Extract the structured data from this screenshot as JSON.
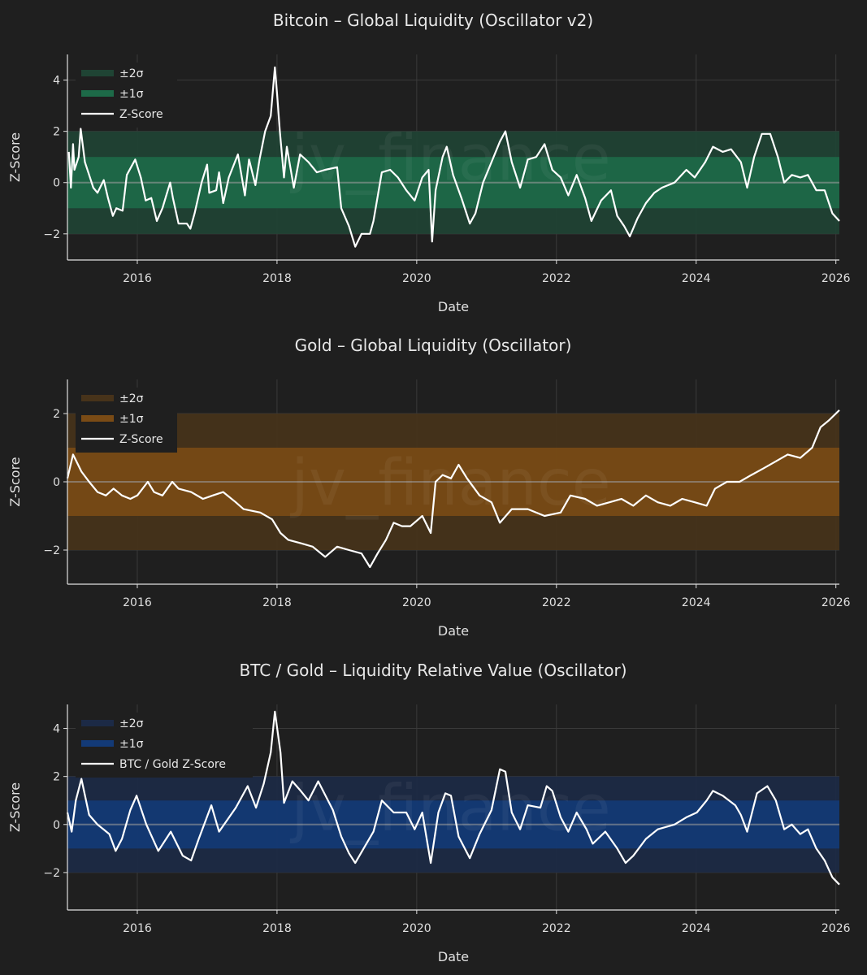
{
  "watermark": "jv_finance",
  "chart_data": [
    {
      "type": "line",
      "title": "Bitcoin – Global Liquidity (Oscillator v2)",
      "xlabel": "Date",
      "ylabel": "Z-Score",
      "xlim": [
        2015.0,
        2026.05
      ],
      "ylim": [
        -3.02,
        5.0
      ],
      "xticks": [
        2016,
        2018,
        2020,
        2022,
        2024,
        2026
      ],
      "yticks": [
        -2,
        0,
        2,
        4
      ],
      "ytick_labels": [
        "−2",
        "0",
        "2",
        "4"
      ],
      "grid": true,
      "legend_position": "top-left",
      "legend": [
        "±2σ",
        "±1σ",
        "Z-Score"
      ],
      "colors": {
        "band2": "#1f4434",
        "band1": "#1d6a48",
        "line": "#ffffff"
      },
      "series": [
        {
          "name": "Z-Score",
          "x": [
            2015.02,
            2015.05,
            2015.08,
            2015.1,
            2015.16,
            2015.19,
            2015.25,
            2015.31,
            2015.37,
            2015.43,
            2015.52,
            2015.58,
            2015.65,
            2015.7,
            2015.79,
            2015.85,
            2015.97,
            2016.05,
            2016.12,
            2016.2,
            2016.28,
            2016.36,
            2016.47,
            2016.51,
            2016.59,
            2016.71,
            2016.76,
            2016.82,
            2016.92,
            2017.0,
            2017.03,
            2017.13,
            2017.17,
            2017.23,
            2017.31,
            2017.44,
            2017.54,
            2017.6,
            2017.69,
            2017.75,
            2017.83,
            2017.91,
            2017.97,
            2018.0,
            2018.04,
            2018.1,
            2018.14,
            2018.24,
            2018.33,
            2018.45,
            2018.57,
            2018.69,
            2018.86,
            2018.92,
            2019.03,
            2019.12,
            2019.21,
            2019.33,
            2019.38,
            2019.5,
            2019.62,
            2019.73,
            2019.85,
            2019.97,
            2020.08,
            2020.17,
            2020.22,
            2020.27,
            2020.37,
            2020.43,
            2020.52,
            2020.64,
            2020.76,
            2020.84,
            2020.95,
            2021.07,
            2021.19,
            2021.27,
            2021.36,
            2021.48,
            2021.59,
            2021.71,
            2021.83,
            2021.94,
            2022.06,
            2022.17,
            2022.29,
            2022.41,
            2022.5,
            2022.64,
            2022.78,
            2022.87,
            2022.97,
            2023.05,
            2023.16,
            2023.28,
            2023.4,
            2023.51,
            2023.69,
            2023.86,
            2023.98,
            2024.13,
            2024.24,
            2024.38,
            2024.5,
            2024.64,
            2024.73,
            2024.83,
            2024.94,
            2025.06,
            2025.17,
            2025.26,
            2025.37,
            2025.49,
            2025.6,
            2025.72,
            2025.84,
            2025.95,
            2026.05
          ],
          "y": [
            1.2,
            -0.2,
            1.5,
            0.5,
            1.0,
            2.1,
            0.8,
            0.3,
            -0.2,
            -0.4,
            0.1,
            -0.6,
            -1.3,
            -1.0,
            -1.1,
            0.3,
            0.9,
            0.2,
            -0.7,
            -0.6,
            -1.5,
            -1.0,
            0.0,
            -0.6,
            -1.6,
            -1.6,
            -1.8,
            -1.2,
            0.0,
            0.7,
            -0.4,
            -0.3,
            0.4,
            -0.8,
            0.2,
            1.1,
            -0.5,
            0.9,
            -0.1,
            0.9,
            2.0,
            2.6,
            4.5,
            3.5,
            2.0,
            0.2,
            1.4,
            -0.2,
            1.1,
            0.8,
            0.4,
            0.5,
            0.6,
            -1.0,
            -1.7,
            -2.5,
            -2.0,
            -2.0,
            -1.5,
            0.4,
            0.5,
            0.2,
            -0.3,
            -0.7,
            0.2,
            0.5,
            -2.3,
            -0.3,
            1.0,
            1.4,
            0.3,
            -0.6,
            -1.6,
            -1.2,
            0.0,
            0.8,
            1.6,
            2.0,
            0.8,
            -0.2,
            0.9,
            1.0,
            1.5,
            0.5,
            0.2,
            -0.5,
            0.3,
            -0.6,
            -1.5,
            -0.7,
            -0.3,
            -1.3,
            -1.7,
            -2.1,
            -1.4,
            -0.8,
            -0.4,
            -0.2,
            0.0,
            0.5,
            0.2,
            0.8,
            1.4,
            1.2,
            1.3,
            0.8,
            -0.2,
            1.0,
            1.9,
            1.9,
            1.0,
            0.0,
            0.3,
            0.2,
            0.3,
            -0.3,
            -0.3,
            -1.2,
            -1.5
          ]
        }
      ]
    },
    {
      "type": "line",
      "title": "Gold – Global Liquidity (Oscillator)",
      "xlabel": "Date",
      "ylabel": "Z-Score",
      "xlim": [
        2015.0,
        2026.05
      ],
      "ylim": [
        -3.0,
        3.0
      ],
      "xticks": [
        2016,
        2018,
        2020,
        2022,
        2024,
        2026
      ],
      "yticks": [
        -2,
        0,
        2
      ],
      "ytick_labels": [
        "−2",
        "0",
        "2"
      ],
      "grid": true,
      "legend_position": "top-left",
      "legend": [
        "±2σ",
        "±1σ",
        "Z-Score"
      ],
      "colors": {
        "band2": "#47331a",
        "band1": "#7a4b15",
        "line": "#ffffff"
      },
      "series": [
        {
          "name": "Z-Score",
          "x": [
            2015.0,
            2015.08,
            2015.2,
            2015.31,
            2015.43,
            2015.55,
            2015.66,
            2015.78,
            2015.9,
            2016.0,
            2016.15,
            2016.24,
            2016.36,
            2016.5,
            2016.59,
            2016.77,
            2016.94,
            2017.08,
            2017.23,
            2017.41,
            2017.52,
            2017.76,
            2017.93,
            2018.05,
            2018.16,
            2018.34,
            2018.51,
            2018.69,
            2018.86,
            2019.03,
            2019.21,
            2019.33,
            2019.44,
            2019.56,
            2019.67,
            2019.79,
            2019.91,
            2020.08,
            2020.2,
            2020.27,
            2020.37,
            2020.49,
            2020.6,
            2020.72,
            2020.9,
            2021.07,
            2021.19,
            2021.36,
            2021.59,
            2021.83,
            2022.06,
            2022.2,
            2022.41,
            2022.58,
            2022.76,
            2022.93,
            2023.1,
            2023.28,
            2023.45,
            2023.63,
            2023.8,
            2023.98,
            2024.15,
            2024.27,
            2024.44,
            2024.62,
            2024.79,
            2024.97,
            2025.14,
            2025.31,
            2025.49,
            2025.66,
            2025.78,
            2025.9,
            2026.05
          ],
          "y": [
            0.1,
            0.8,
            0.3,
            0.0,
            -0.3,
            -0.4,
            -0.2,
            -0.4,
            -0.5,
            -0.4,
            0.0,
            -0.3,
            -0.4,
            0.0,
            -0.2,
            -0.3,
            -0.5,
            -0.4,
            -0.3,
            -0.6,
            -0.8,
            -0.9,
            -1.1,
            -1.5,
            -1.7,
            -1.8,
            -1.9,
            -2.2,
            -1.9,
            -2.0,
            -2.1,
            -2.5,
            -2.1,
            -1.7,
            -1.2,
            -1.3,
            -1.3,
            -1.0,
            -1.5,
            0.0,
            0.2,
            0.1,
            0.5,
            0.1,
            -0.4,
            -0.6,
            -1.2,
            -0.8,
            -0.8,
            -1.0,
            -0.9,
            -0.4,
            -0.5,
            -0.7,
            -0.6,
            -0.5,
            -0.7,
            -0.4,
            -0.6,
            -0.7,
            -0.5,
            -0.6,
            -0.7,
            -0.2,
            0.0,
            0.0,
            0.2,
            0.4,
            0.6,
            0.8,
            0.7,
            1.0,
            1.6,
            1.8,
            2.1
          ]
        }
      ]
    },
    {
      "type": "line",
      "title": "BTC / Gold – Liquidity Relative Value (Oscillator)",
      "xlabel": "Date",
      "ylabel": "Z-Score",
      "xlim": [
        2015.0,
        2026.05
      ],
      "ylim": [
        -3.56,
        5.0
      ],
      "xticks": [
        2016,
        2018,
        2020,
        2022,
        2024,
        2026
      ],
      "yticks": [
        -2,
        0,
        2,
        4
      ],
      "ytick_labels": [
        "−2",
        "0",
        "2",
        "4"
      ],
      "grid": true,
      "legend_position": "top-left",
      "legend": [
        "±2σ",
        "±1σ",
        "BTC / Gold Z-Score"
      ],
      "colors": {
        "band2": "#1c2a46",
        "band1": "#133a77",
        "line": "#ffffff"
      },
      "series": [
        {
          "name": "BTC / Gold Z-Score",
          "x": [
            2015.0,
            2015.06,
            2015.12,
            2015.2,
            2015.31,
            2015.43,
            2015.6,
            2015.69,
            2015.78,
            2015.9,
            2015.99,
            2016.13,
            2016.3,
            2016.48,
            2016.65,
            2016.77,
            2016.88,
            2017.06,
            2017.17,
            2017.41,
            2017.58,
            2017.7,
            2017.81,
            2017.91,
            2017.97,
            2018.05,
            2018.1,
            2018.22,
            2018.34,
            2018.45,
            2018.59,
            2018.8,
            2018.92,
            2019.03,
            2019.12,
            2019.24,
            2019.38,
            2019.5,
            2019.67,
            2019.85,
            2019.97,
            2020.08,
            2020.2,
            2020.31,
            2020.41,
            2020.49,
            2020.6,
            2020.76,
            2020.9,
            2021.07,
            2021.19,
            2021.27,
            2021.36,
            2021.48,
            2021.59,
            2021.77,
            2021.86,
            2021.94,
            2022.06,
            2022.17,
            2022.29,
            2022.43,
            2022.52,
            2022.7,
            2022.87,
            2022.99,
            2023.1,
            2023.28,
            2023.45,
            2023.69,
            2023.86,
            2024.01,
            2024.15,
            2024.24,
            2024.38,
            2024.56,
            2024.64,
            2024.73,
            2024.87,
            2025.02,
            2025.14,
            2025.26,
            2025.37,
            2025.49,
            2025.6,
            2025.72,
            2025.84,
            2025.95,
            2026.05
          ],
          "y": [
            0.5,
            -0.3,
            1.0,
            1.9,
            0.4,
            0.0,
            -0.4,
            -1.1,
            -0.6,
            0.6,
            1.2,
            0.0,
            -1.1,
            -0.3,
            -1.3,
            -1.5,
            -0.6,
            0.8,
            -0.3,
            0.7,
            1.6,
            0.7,
            1.7,
            3.0,
            4.7,
            3.0,
            0.9,
            1.8,
            1.4,
            1.0,
            1.8,
            0.6,
            -0.5,
            -1.2,
            -1.6,
            -1.0,
            -0.3,
            1.0,
            0.5,
            0.5,
            -0.2,
            0.5,
            -1.6,
            0.5,
            1.3,
            1.2,
            -0.5,
            -1.4,
            -0.4,
            0.6,
            2.3,
            2.2,
            0.5,
            -0.2,
            0.8,
            0.7,
            1.6,
            1.4,
            0.3,
            -0.3,
            0.5,
            -0.2,
            -0.8,
            -0.3,
            -1.0,
            -1.6,
            -1.3,
            -0.6,
            -0.2,
            0.0,
            0.3,
            0.5,
            1.0,
            1.4,
            1.2,
            0.8,
            0.4,
            -0.3,
            1.3,
            1.6,
            1.0,
            -0.2,
            0.0,
            -0.4,
            -0.2,
            -1.0,
            -1.5,
            -2.2,
            -2.5
          ]
        }
      ]
    }
  ]
}
